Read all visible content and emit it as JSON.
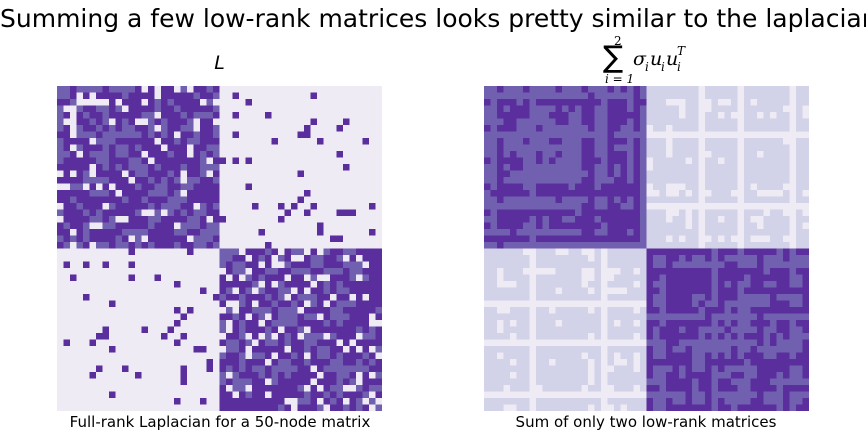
{
  "figure": {
    "title": "Summing a few low-rank matrices looks pretty similar to the laplacian!"
  },
  "colors": {
    "light": "#eeebf4",
    "mid_light": "#d2d2e8",
    "mid": "#715fb0",
    "dark": "#5a2e9c"
  },
  "chart_data": [
    {
      "type": "heatmap",
      "title": "L",
      "xlabel": "Full-rank Laplacian for a 50-node matrix",
      "n": 50,
      "levels": [
        "light",
        "mid",
        "dark"
      ],
      "block_size": 25,
      "description_of_values": "graph Laplacian of two 25-node communities"
    },
    {
      "type": "heatmap",
      "title_parts": {
        "sum": "∑",
        "upper": "2",
        "lower": "i = 1",
        "term": "σ",
        "sub_i": "i",
        "u": "u",
        "T": "T"
      },
      "xlabel": "Sum of only two low-rank matrices",
      "n": 50,
      "levels": [
        "light",
        "mid_light",
        "mid",
        "dark"
      ],
      "block_size": 25,
      "rank": 2
    }
  ]
}
